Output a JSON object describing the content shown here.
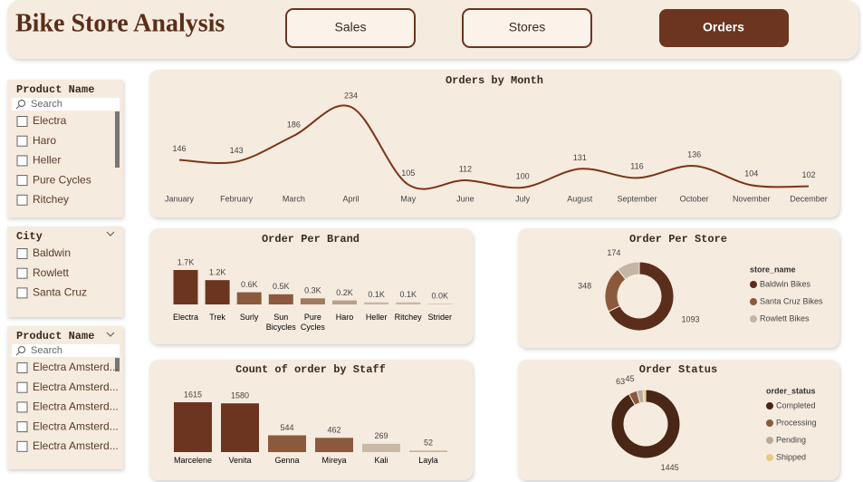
{
  "header": {
    "title": "Bike Store Analysis",
    "nav": [
      "Sales",
      "Stores",
      "Orders"
    ]
  },
  "slicers": [
    {
      "title": "Product Name",
      "search": "Search",
      "items": [
        "Electra",
        "Haro",
        "Heller",
        "Pure Cycles",
        "Ritchey"
      ]
    },
    {
      "title": "City",
      "items": [
        "Baldwin",
        "Rowlett",
        "Santa Cruz"
      ]
    },
    {
      "title": "Product Name",
      "search": "Search",
      "items": [
        "Electra Amsterd...",
        "Electra Amsterd...",
        "Electra Amsterd...",
        "Electra Amsterd...",
        "Electra Amsterd..."
      ]
    }
  ],
  "chart_data": [
    {
      "type": "line",
      "title": "Orders by Month",
      "categories": [
        "January",
        "February",
        "March",
        "April",
        "May",
        "June",
        "July",
        "August",
        "September",
        "October",
        "November",
        "December"
      ],
      "values": [
        146,
        143,
        186,
        234,
        105,
        112,
        100,
        131,
        116,
        136,
        104,
        102
      ],
      "color": "#7a3517"
    },
    {
      "type": "bar",
      "title": "Order Per Brand",
      "categories": [
        "Electra",
        "Trek",
        "Surly",
        "Sun Bicycles",
        "Pure Cycles",
        "Haro",
        "Heller",
        "Ritchey",
        "Strider"
      ],
      "values": [
        1700,
        1200,
        600,
        500,
        300,
        200,
        100,
        100,
        30
      ],
      "value_labels": [
        "1.7K",
        "1.2K",
        "0.6K",
        "0.5K",
        "0.3K",
        "0.2K",
        "0.1K",
        "0.1K",
        "0.0K"
      ],
      "colors": [
        "#6b3520",
        "#6b3520",
        "#8b5a3c",
        "#8b5a3c",
        "#a27a5e",
        "#b9a08a",
        "#c9b8a6",
        "#c9b8a6",
        "#c9b8a6"
      ]
    },
    {
      "type": "donut",
      "title": "Order Per Store",
      "legend_title": "store_name",
      "categories": [
        "Baldwin Bikes",
        "Santa Cruz Bikes",
        "Rowlett Bikes"
      ],
      "values": [
        1093,
        348,
        174
      ],
      "colors": [
        "#5a2e1a",
        "#8b5a3c",
        "#c4b5a5"
      ]
    },
    {
      "type": "bar",
      "title": "Count of order by Staff",
      "categories": [
        "Marcelene",
        "Venita",
        "Genna",
        "Mireya",
        "Kali",
        "Layla"
      ],
      "values": [
        1615,
        1580,
        544,
        462,
        269,
        52
      ],
      "colors": [
        "#6b3520",
        "#6b3520",
        "#8b5a3c",
        "#8b5a3c",
        "#c9b8a6",
        "#c9b8a6"
      ]
    },
    {
      "type": "donut",
      "title": "Order Status",
      "legend_title": "order_status",
      "categories": [
        "Completed",
        "Processing",
        "Pending",
        "Shipped"
      ],
      "values": [
        1445,
        63,
        45,
        20
      ],
      "colors": [
        "#4a2617",
        "#8b5a3c",
        "#b9aa9a",
        "#e8c98a"
      ]
    }
  ]
}
